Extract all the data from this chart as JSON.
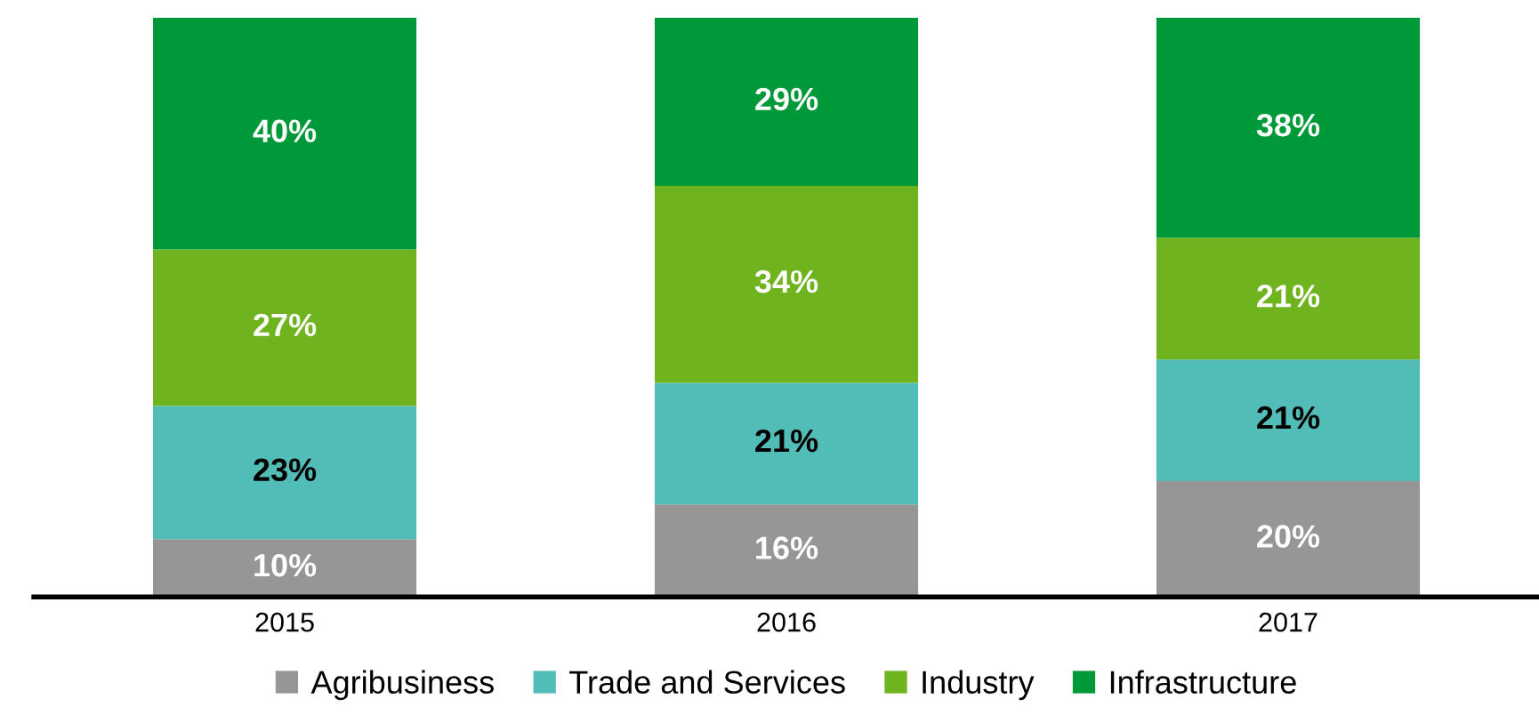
{
  "chart_data": {
    "type": "bar",
    "stacked": true,
    "categories": [
      "2015",
      "2016",
      "2017"
    ],
    "ylim": [
      0,
      100
    ],
    "legend": "bottom",
    "grid": false,
    "tick_labels": "x",
    "series": [
      {
        "name": "Agribusiness",
        "color": "#969696",
        "values": [
          10,
          16,
          20
        ],
        "value_labels": [
          "10%",
          "16%",
          "20%"
        ]
      },
      {
        "name": "Trade and Services",
        "color": "#52bdb7",
        "values": [
          23,
          21,
          21
        ],
        "value_labels": [
          "23%",
          "21%",
          "21%"
        ]
      },
      {
        "name": "Industry",
        "color": "#6fb31f",
        "values": [
          27,
          34,
          21
        ],
        "value_labels": [
          "27%",
          "34%",
          "21%"
        ]
      },
      {
        "name": "Infrastructure",
        "color": "#00993a",
        "values": [
          40,
          29,
          38
        ],
        "value_labels": [
          "40%",
          "29%",
          "38%"
        ]
      }
    ]
  }
}
